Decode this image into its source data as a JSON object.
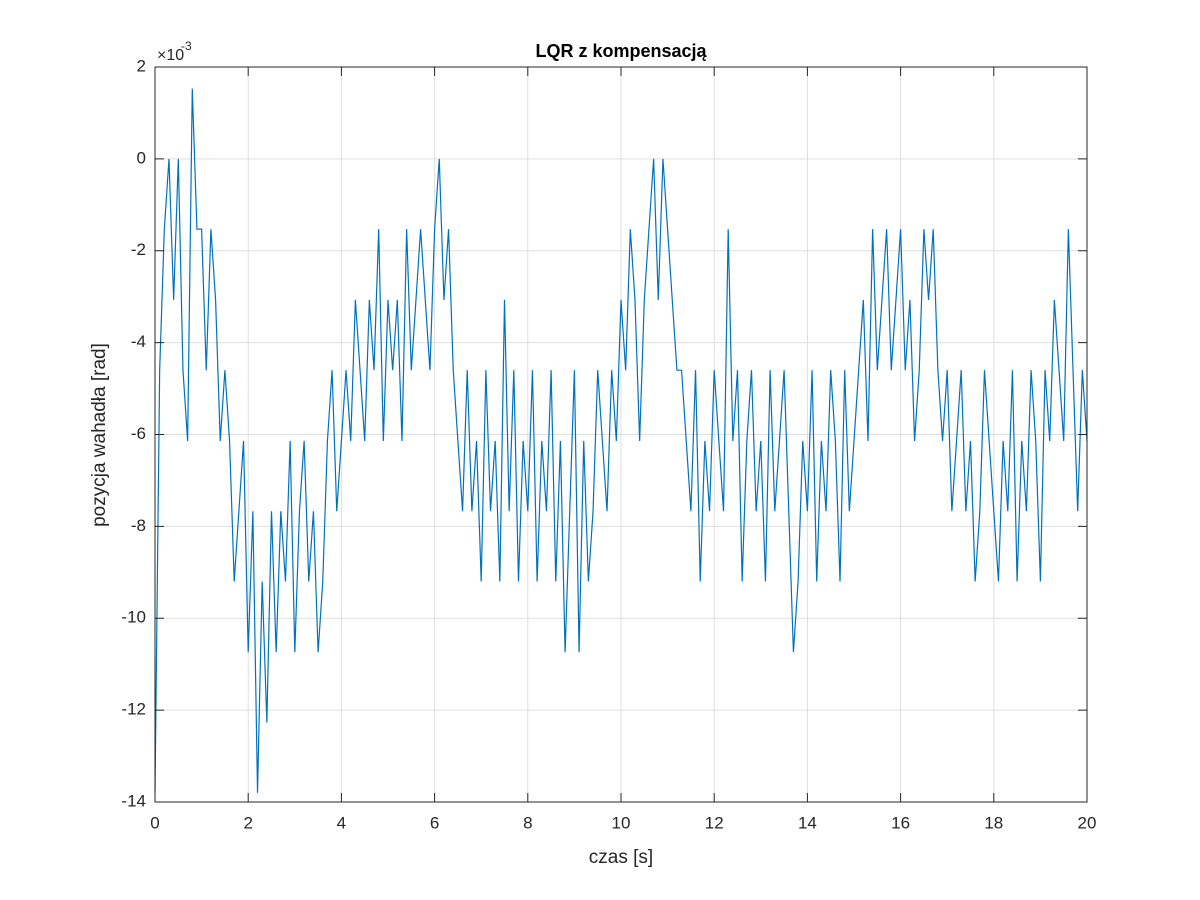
{
  "chart_data": {
    "type": "line",
    "title": "LQR z kompensacją",
    "x_label": "czas [s]",
    "y_label": "pozycja wahadła [rad]",
    "y_multiplier": "×10",
    "y_exponent": "-3",
    "xlim": [
      0,
      20
    ],
    "xticks": [
      0,
      2,
      4,
      6,
      8,
      10,
      12,
      14,
      16,
      18,
      20
    ],
    "ylim": [
      -14,
      2
    ],
    "yticks": [
      -14,
      -12,
      -10,
      -8,
      -6,
      -4,
      -2,
      0,
      2
    ],
    "grid": true,
    "x": [
      0,
      0.1,
      0.2,
      0.3,
      0.4,
      0.5,
      0.6,
      0.7,
      0.8,
      0.9,
      1,
      1.1,
      1.2,
      1.3,
      1.4,
      1.5,
      1.6,
      1.7,
      1.8,
      1.9,
      2,
      2.1,
      2.2,
      2.3,
      2.4,
      2.5,
      2.6,
      2.7,
      2.8,
      2.9,
      3,
      3.1,
      3.2,
      3.3,
      3.4,
      3.5,
      3.6,
      3.7,
      3.8,
      3.9,
      4,
      4.1,
      4.2,
      4.3,
      4.4,
      4.5,
      4.6,
      4.7,
      4.8,
      4.9,
      5,
      5.1,
      5.2,
      5.3,
      5.4,
      5.5,
      5.6,
      5.7,
      5.8,
      5.9,
      6,
      6.1,
      6.2,
      6.3,
      6.4,
      6.5,
      6.6,
      6.7,
      6.8,
      6.9,
      7,
      7.1,
      7.2,
      7.3,
      7.4,
      7.5,
      7.6,
      7.7,
      7.8,
      7.9,
      8,
      8.1,
      8.2,
      8.3,
      8.4,
      8.5,
      8.6,
      8.7,
      8.8,
      8.9,
      9,
      9.1,
      9.2,
      9.3,
      9.4,
      9.5,
      9.6,
      9.7,
      9.8,
      9.9,
      10,
      10.1,
      10.2,
      10.3,
      10.4,
      10.5,
      10.6,
      10.7,
      10.8,
      10.9,
      11,
      11.1,
      11.2,
      11.3,
      11.4,
      11.5,
      11.6,
      11.7,
      11.8,
      11.9,
      12,
      12.1,
      12.2,
      12.3,
      12.4,
      12.5,
      12.6,
      12.7,
      12.8,
      12.9,
      13,
      13.1,
      13.2,
      13.3,
      13.4,
      13.5,
      13.6,
      13.7,
      13.8,
      13.9,
      14,
      14.1,
      14.2,
      14.3,
      14.4,
      14.5,
      14.6,
      14.7,
      14.8,
      14.9,
      15,
      15.1,
      15.2,
      15.3,
      15.4,
      15.5,
      15.6,
      15.7,
      15.8,
      15.9,
      16,
      16.1,
      16.2,
      16.3,
      16.4,
      16.5,
      16.6,
      16.7,
      16.8,
      16.9,
      17,
      17.1,
      17.2,
      17.3,
      17.4,
      17.5,
      17.6,
      17.7,
      17.8,
      17.9,
      18,
      18.1,
      18.2,
      18.3,
      18.4,
      18.5,
      18.6,
      18.7,
      18.8,
      18.9,
      19,
      19.1,
      19.2,
      19.3,
      19.4,
      19.5,
      19.6,
      19.7,
      19.8,
      19.9,
      20
    ],
    "series": [
      {
        "color": "#0072bd",
        "values": [
          -13.8,
          -4.6,
          -1.53,
          0,
          -3.07,
          0,
          -4.6,
          -6.14,
          1.53,
          -1.53,
          -1.53,
          -4.6,
          -1.53,
          -3.07,
          -6.14,
          -4.6,
          -6.14,
          -9.2,
          -7.67,
          -6.14,
          -10.74,
          -7.67,
          -13.8,
          -9.2,
          -12.27,
          -7.67,
          -10.74,
          -7.67,
          -9.2,
          -6.14,
          -10.74,
          -7.67,
          -6.14,
          -9.2,
          -7.67,
          -10.74,
          -9.2,
          -6.14,
          -4.6,
          -7.67,
          -6.14,
          -4.6,
          -6.14,
          -3.07,
          -4.6,
          -6.14,
          -3.07,
          -4.6,
          -1.53,
          -6.14,
          -3.07,
          -4.6,
          -3.07,
          -6.14,
          -1.53,
          -4.6,
          -3.07,
          -1.53,
          -3.07,
          -4.6,
          -1.53,
          0,
          -3.07,
          -1.53,
          -4.6,
          -6.14,
          -7.67,
          -4.6,
          -7.67,
          -6.14,
          -9.2,
          -4.6,
          -7.67,
          -6.14,
          -9.2,
          -3.07,
          -7.67,
          -4.6,
          -9.2,
          -6.14,
          -7.67,
          -4.6,
          -9.2,
          -6.14,
          -7.67,
          -4.6,
          -9.2,
          -6.14,
          -10.74,
          -7.67,
          -4.6,
          -10.74,
          -6.14,
          -9.2,
          -7.67,
          -4.6,
          -6.14,
          -7.67,
          -4.6,
          -6.14,
          -3.07,
          -4.6,
          -1.53,
          -3.07,
          -6.14,
          -3.07,
          -1.53,
          0,
          -3.07,
          0,
          -1.53,
          -3.07,
          -4.6,
          -4.6,
          -6.14,
          -7.67,
          -4.6,
          -9.2,
          -6.14,
          -7.67,
          -4.6,
          -6.14,
          -7.67,
          -1.53,
          -6.14,
          -4.6,
          -9.2,
          -6.14,
          -4.6,
          -7.67,
          -6.14,
          -9.2,
          -4.6,
          -7.67,
          -6.14,
          -4.6,
          -7.67,
          -10.74,
          -9.2,
          -6.14,
          -7.67,
          -4.6,
          -9.2,
          -6.14,
          -7.67,
          -4.6,
          -6.14,
          -9.2,
          -4.6,
          -7.67,
          -6.14,
          -4.6,
          -3.07,
          -6.14,
          -1.53,
          -4.6,
          -3.07,
          -1.53,
          -4.6,
          -3.07,
          -1.53,
          -4.6,
          -3.07,
          -6.14,
          -4.6,
          -1.53,
          -3.07,
          -1.53,
          -4.6,
          -6.14,
          -4.6,
          -7.67,
          -6.14,
          -4.6,
          -7.67,
          -6.14,
          -9.2,
          -7.67,
          -4.6,
          -6.14,
          -7.67,
          -9.2,
          -6.14,
          -7.67,
          -4.6,
          -9.2,
          -6.14,
          -7.67,
          -4.6,
          -6.14,
          -9.2,
          -4.6,
          -6.14,
          -3.07,
          -4.6,
          -6.14,
          -1.53,
          -4.6,
          -7.67,
          -4.6,
          -6.14
        ]
      }
    ]
  }
}
